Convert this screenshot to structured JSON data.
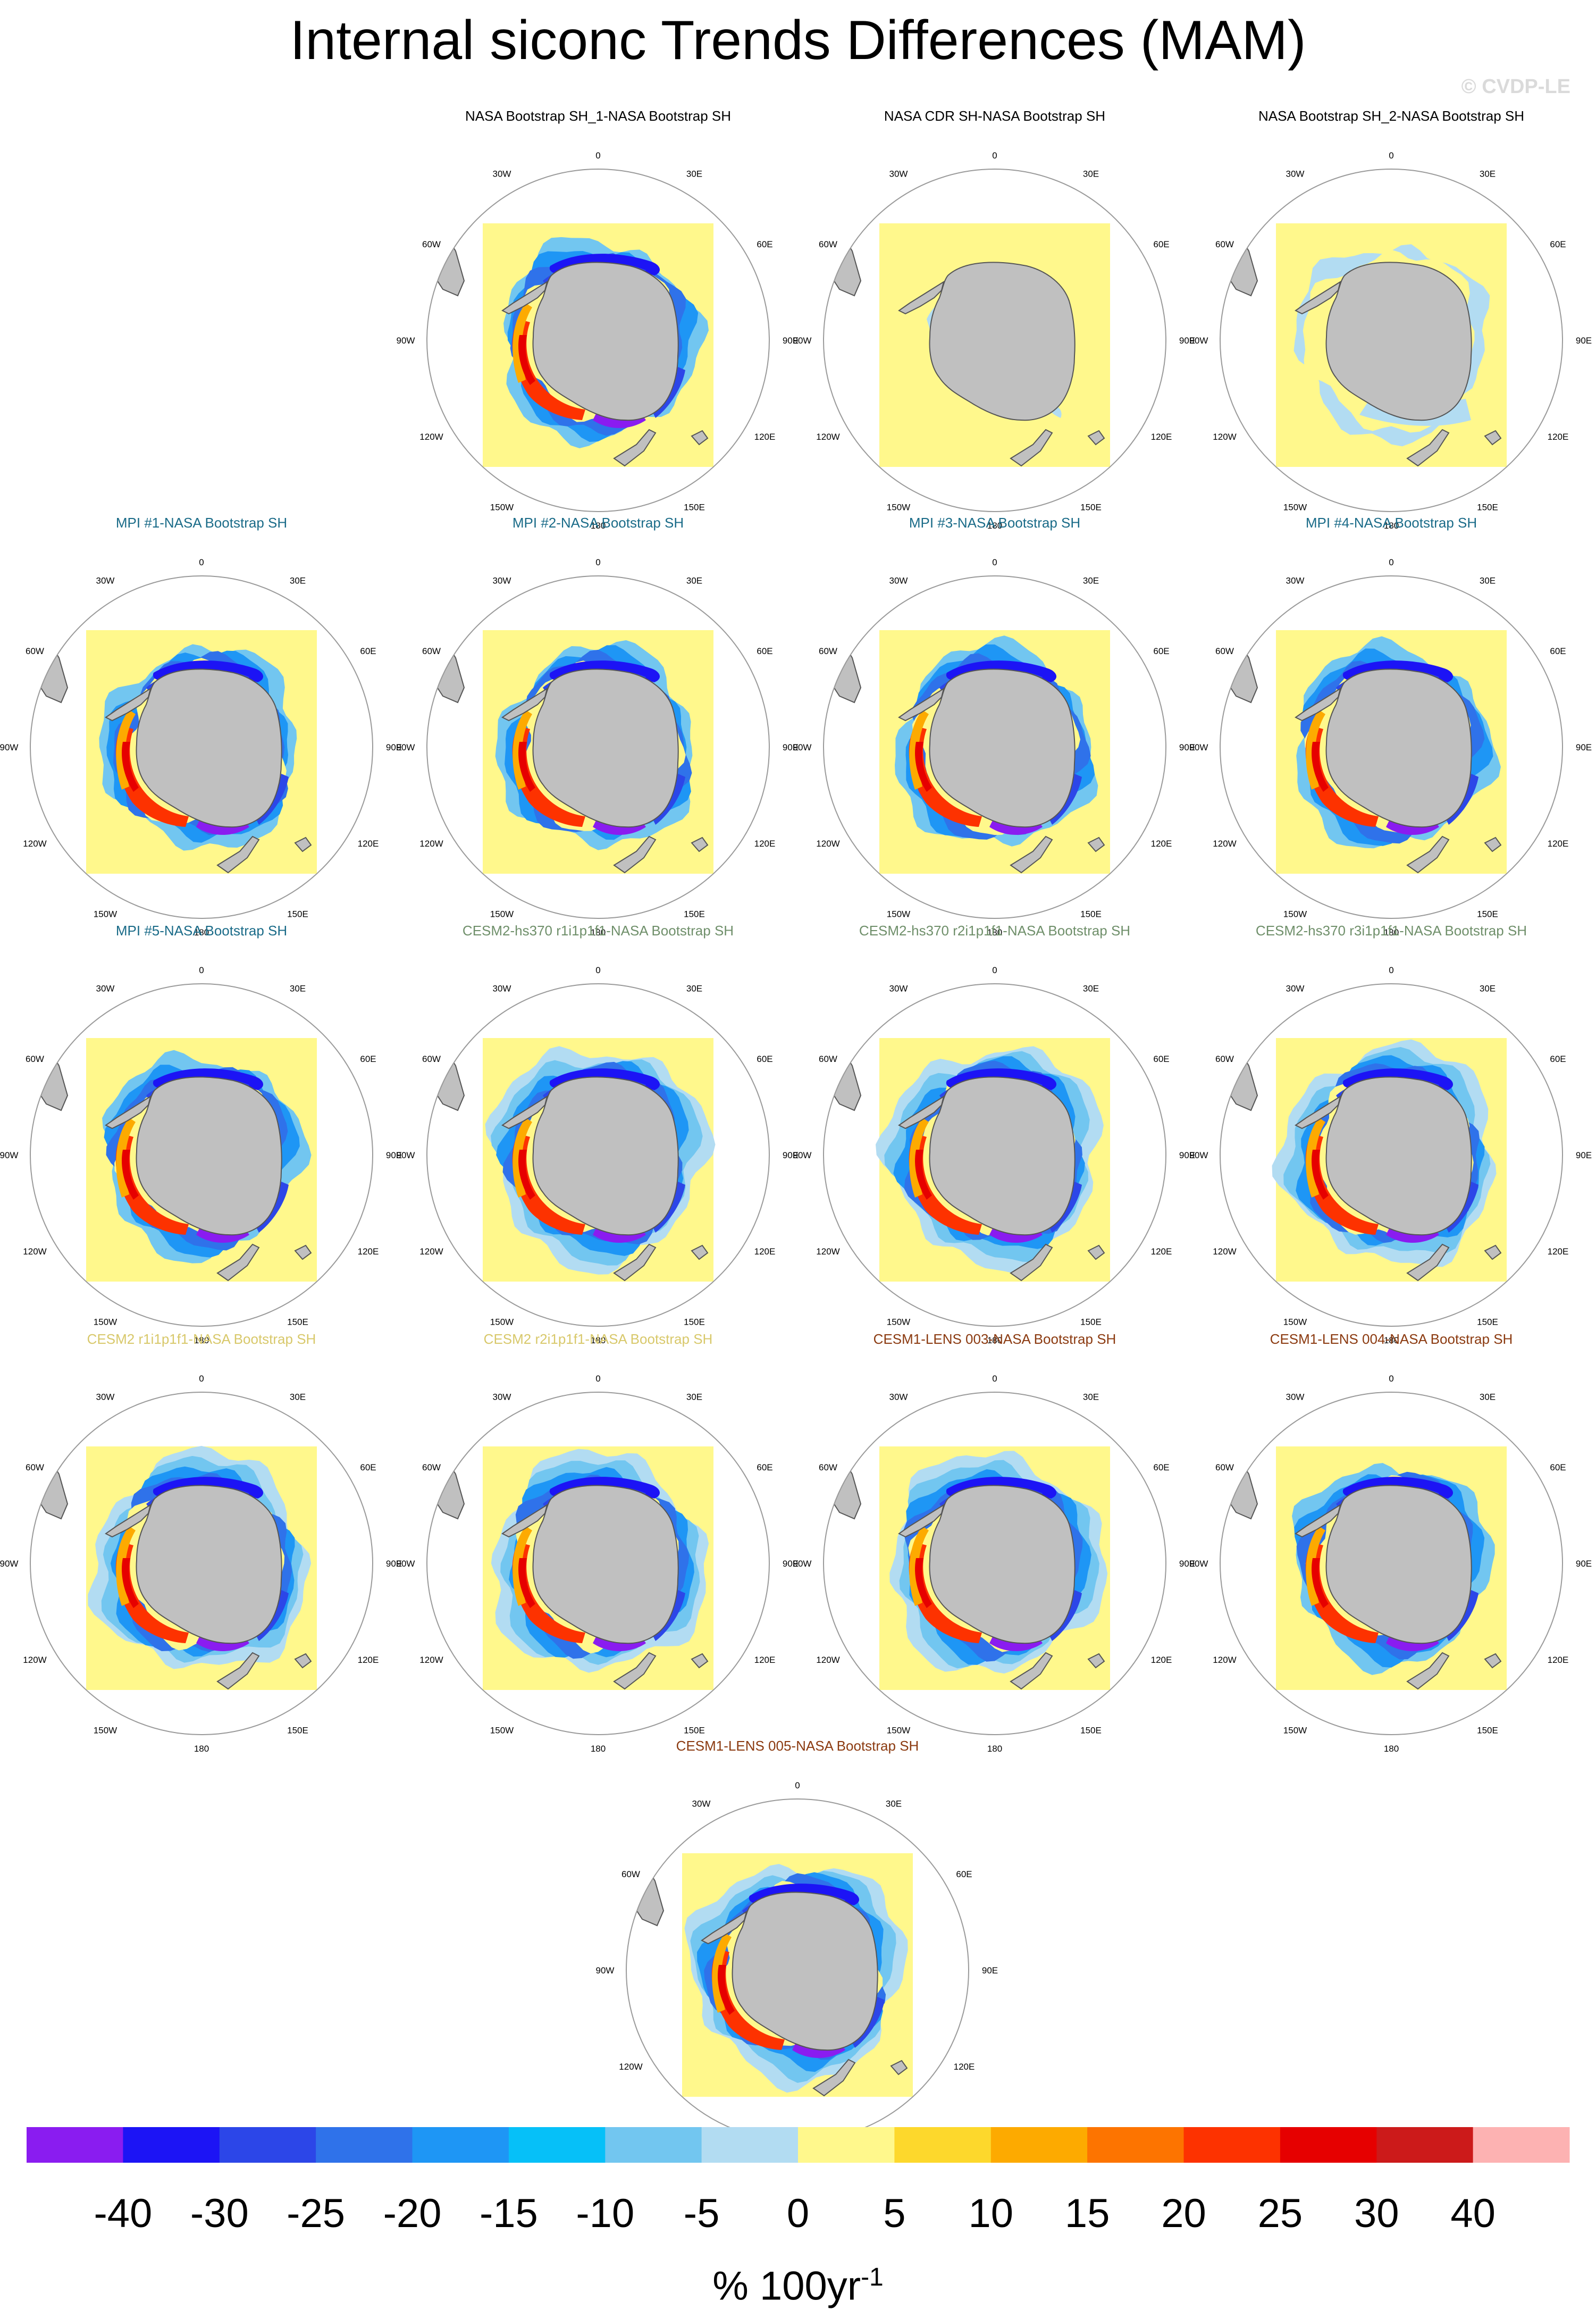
{
  "title": "Internal siconc Trends Differences (MAM)",
  "watermark": "© CVDP-LE",
  "lon_labels": [
    "0",
    "30E",
    "60E",
    "90E",
    "120E",
    "150E",
    "180",
    "150W",
    "120W",
    "90W",
    "60W",
    "30W"
  ],
  "panels": [
    {
      "title": "NASA Bootstrap SH_1-NASA Bootstrap SH",
      "title_color": "#000000",
      "pattern": "zero"
    },
    {
      "title": "NASA CDR SH-NASA Bootstrap SH",
      "title_color": "#000000",
      "pattern": "cdr"
    },
    {
      "title": "NASA Bootstrap SH_2-NASA Bootstrap SH",
      "title_color": "#000000",
      "pattern": "bs2"
    },
    {
      "title": "MPI #1-NASA Bootstrap SH",
      "title_color": "#1a6b88",
      "pattern": "model"
    },
    {
      "title": "MPI #2-NASA Bootstrap SH",
      "title_color": "#1a6b88",
      "pattern": "model"
    },
    {
      "title": "MPI #3-NASA Bootstrap SH",
      "title_color": "#1a6b88",
      "pattern": "model"
    },
    {
      "title": "MPI #4-NASA Bootstrap SH",
      "title_color": "#1a6b88",
      "pattern": "model"
    },
    {
      "title": "MPI #5-NASA Bootstrap SH",
      "title_color": "#1a6b88",
      "pattern": "model"
    },
    {
      "title": "CESM2-hs370 r1i1p1f1-NASA Bootstrap SH",
      "title_color": "#6f8f6a",
      "pattern": "model_wide"
    },
    {
      "title": "CESM2-hs370 r2i1p1f1-NASA Bootstrap SH",
      "title_color": "#6f8f6a",
      "pattern": "model_wide"
    },
    {
      "title": "CESM2-hs370 r3i1p1f1-NASA Bootstrap SH",
      "title_color": "#6f8f6a",
      "pattern": "model_wide"
    },
    {
      "title": "CESM2 r1i1p1f1-NASA Bootstrap SH",
      "title_color": "#d8c86a",
      "pattern": "model_wide"
    },
    {
      "title": "CESM2 r2i1p1f1-NASA Bootstrap SH",
      "title_color": "#d8c86a",
      "pattern": "model_wide"
    },
    {
      "title": "CESM1-LENS 003-NASA Bootstrap SH",
      "title_color": "#8b3a10",
      "pattern": "model_wide"
    },
    {
      "title": "CESM1-LENS 004-NASA Bootstrap SH",
      "title_color": "#8b3a10",
      "pattern": "model"
    },
    {
      "title": "CESM1-LENS 005-NASA Bootstrap SH",
      "title_color": "#8b3a10",
      "pattern": "model_wide"
    }
  ],
  "colorbar": {
    "colors": [
      "#8a1cf0",
      "#1c14f5",
      "#2c46e8",
      "#2f72ea",
      "#1e96f5",
      "#06c0f8",
      "#72c6f0",
      "#b2dcf2",
      "#fff88c",
      "#fdd82c",
      "#fdaa00",
      "#fd7400",
      "#fd3200",
      "#e60000",
      "#cc1a1a",
      "#fdb2b2"
    ],
    "tick_labels": [
      "-40",
      "-30",
      "-25",
      "-20",
      "-15",
      "-10",
      "-5",
      "0",
      "5",
      "10",
      "15",
      "20",
      "25",
      "30",
      "40"
    ],
    "units": "% 100yr",
    "units_exponent": "-1"
  }
}
